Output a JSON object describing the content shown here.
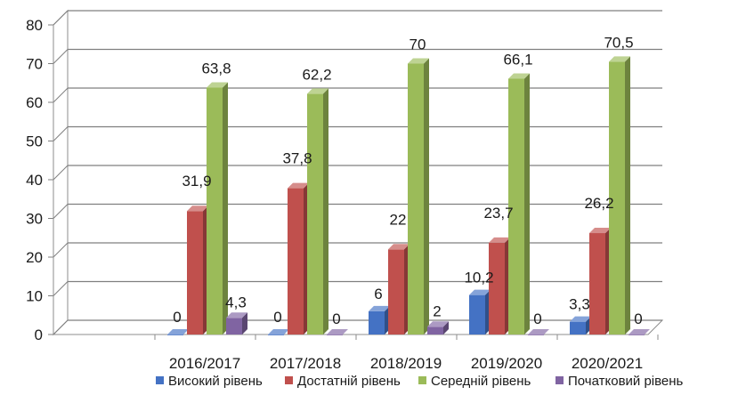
{
  "chart_data": {
    "type": "bar",
    "categories": [
      "2016/2017",
      "2017/2018",
      "2018/2019",
      "2019/2020",
      "2020/2021"
    ],
    "series": [
      {
        "name": "Високий рівень",
        "values": [
          0,
          0,
          6,
          10.2,
          3.3
        ],
        "labels": [
          "0",
          "0",
          "6",
          "10,2",
          "3,3"
        ],
        "color": "#4472C4"
      },
      {
        "name": "Достатній рівень",
        "values": [
          31.9,
          37.8,
          22,
          23.7,
          26.2
        ],
        "labels": [
          "31,9",
          "37,8",
          "22",
          "23,7",
          "26,2"
        ],
        "color": "#C0504D"
      },
      {
        "name": "Середній рівень",
        "values": [
          63.8,
          62.2,
          70,
          66.1,
          70.5
        ],
        "labels": [
          "63,8",
          "62,2",
          "70",
          "66,1",
          "70,5"
        ],
        "color": "#9BBB59"
      },
      {
        "name": "Початковий рівень",
        "values": [
          4.3,
          0,
          2,
          0,
          0
        ],
        "labels": [
          "4,3",
          "0",
          "2",
          "0",
          "0"
        ],
        "color": "#8064A2"
      }
    ],
    "yticks": [
      "0",
      "10",
      "20",
      "30",
      "40",
      "50",
      "60",
      "70",
      "80"
    ],
    "ylim": [
      0,
      80
    ],
    "grid": true,
    "legend_position": "bottom",
    "view": "3d"
  }
}
